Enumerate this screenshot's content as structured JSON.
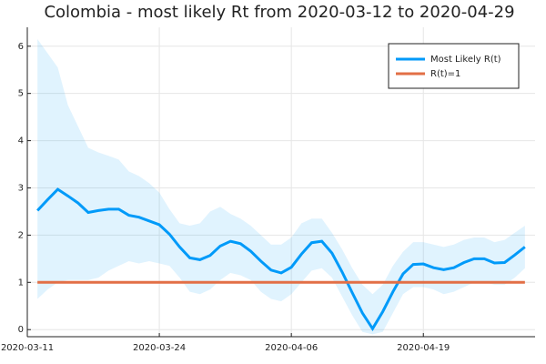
{
  "chart_data": {
    "type": "line",
    "title": "Colombia - most likely Rt from 2020-03-12 to 2020-04-29",
    "x": [
      "2020-03-12",
      "2020-03-13",
      "2020-03-14",
      "2020-03-15",
      "2020-03-16",
      "2020-03-17",
      "2020-03-18",
      "2020-03-19",
      "2020-03-20",
      "2020-03-21",
      "2020-03-22",
      "2020-03-23",
      "2020-03-24",
      "2020-03-25",
      "2020-03-26",
      "2020-03-27",
      "2020-03-28",
      "2020-03-29",
      "2020-03-30",
      "2020-03-31",
      "2020-04-01",
      "2020-04-02",
      "2020-04-03",
      "2020-04-04",
      "2020-04-05",
      "2020-04-06",
      "2020-04-07",
      "2020-04-08",
      "2020-04-09",
      "2020-04-10",
      "2020-04-11",
      "2020-04-12",
      "2020-04-13",
      "2020-04-14",
      "2020-04-15",
      "2020-04-16",
      "2020-04-17",
      "2020-04-18",
      "2020-04-19",
      "2020-04-20",
      "2020-04-21",
      "2020-04-22",
      "2020-04-23",
      "2020-04-24",
      "2020-04-25",
      "2020-04-26",
      "2020-04-27",
      "2020-04-28",
      "2020-04-29"
    ],
    "series": [
      {
        "name": "Most Likely R(t)",
        "color": "#009af9",
        "values": [
          2.52,
          2.75,
          2.97,
          2.83,
          2.68,
          2.48,
          2.52,
          2.55,
          2.55,
          2.42,
          2.38,
          2.3,
          2.22,
          2.02,
          1.75,
          1.52,
          1.48,
          1.57,
          1.77,
          1.87,
          1.82,
          1.66,
          1.45,
          1.26,
          1.2,
          1.32,
          1.6,
          1.84,
          1.87,
          1.62,
          1.22,
          0.78,
          0.35,
          0.02,
          0.38,
          0.8,
          1.18,
          1.38,
          1.39,
          1.31,
          1.27,
          1.31,
          1.42,
          1.5,
          1.5,
          1.41,
          1.42,
          1.58,
          1.75
        ]
      },
      {
        "name": "R(t)=1",
        "color": "#e26f46",
        "values": [
          1,
          1,
          1,
          1,
          1,
          1,
          1,
          1,
          1,
          1,
          1,
          1,
          1,
          1,
          1,
          1,
          1,
          1,
          1,
          1,
          1,
          1,
          1,
          1,
          1,
          1,
          1,
          1,
          1,
          1,
          1,
          1,
          1,
          1,
          1,
          1,
          1,
          1,
          1,
          1,
          1,
          1,
          1,
          1,
          1,
          1,
          1,
          1,
          1
        ]
      }
    ],
    "band": {
      "color": "#009af9",
      "upper": [
        6.15,
        5.85,
        5.55,
        4.75,
        4.3,
        3.85,
        3.75,
        3.68,
        3.6,
        3.35,
        3.25,
        3.1,
        2.9,
        2.55,
        2.25,
        2.2,
        2.25,
        2.5,
        2.6,
        2.45,
        2.35,
        2.2,
        2.0,
        1.8,
        1.8,
        1.95,
        2.25,
        2.35,
        2.35,
        2.05,
        1.7,
        1.3,
        0.95,
        0.75,
        0.95,
        1.35,
        1.65,
        1.85,
        1.85,
        1.8,
        1.75,
        1.8,
        1.9,
        1.95,
        1.95,
        1.85,
        1.9,
        2.05,
        2.2
      ],
      "lower": [
        0.65,
        0.85,
        1.0,
        1.05,
        1.05,
        1.05,
        1.1,
        1.25,
        1.35,
        1.45,
        1.4,
        1.45,
        1.4,
        1.35,
        1.1,
        0.8,
        0.75,
        0.85,
        1.05,
        1.2,
        1.15,
        1.05,
        0.8,
        0.65,
        0.6,
        0.75,
        1.0,
        1.25,
        1.3,
        1.1,
        0.7,
        0.3,
        -0.05,
        -0.1,
        -0.05,
        0.35,
        0.75,
        0.9,
        0.9,
        0.85,
        0.75,
        0.8,
        0.9,
        1.0,
        1.0,
        0.95,
        0.95,
        1.1,
        1.3
      ]
    },
    "xlim": [
      "2020-03-11",
      "2020-04-30"
    ],
    "xticks": [
      "2020-03-11",
      "2020-03-24",
      "2020-04-06",
      "2020-04-19"
    ],
    "ylim": [
      -0.15,
      6.4
    ],
    "yticks": [
      0,
      1,
      2,
      3,
      4,
      5,
      6
    ],
    "grid": true,
    "legend": "top-right"
  }
}
